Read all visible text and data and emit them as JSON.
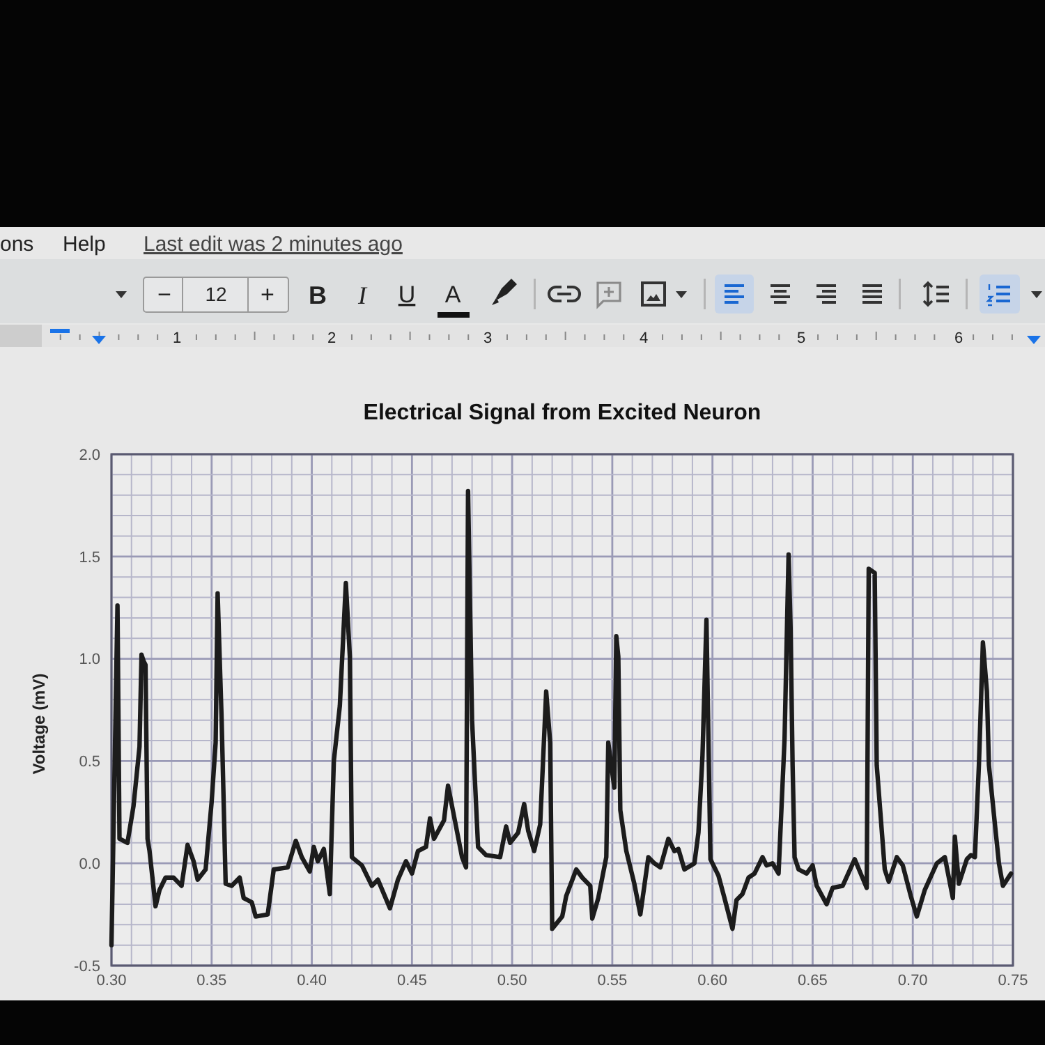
{
  "chart_data": {
    "type": "line",
    "title": "Electrical Signal from Excited Neuron",
    "ylabel": "Voltage (mV)",
    "annotations": [
      "ons",
      "Help",
      "Last edit was 2 minutes ago",
      "−",
      "12",
      "+",
      "B",
      "I",
      "U",
      "A",
      "1",
      "2",
      "3",
      "4",
      "5",
      "6"
    ],
    "x": [
      0.3,
      0.303,
      0.304,
      0.308,
      0.311,
      0.314,
      0.315,
      0.316,
      0.317,
      0.318,
      0.319,
      0.322,
      0.324,
      0.327,
      0.331,
      0.335,
      0.338,
      0.341,
      0.343,
      0.347,
      0.35,
      0.352,
      0.353,
      0.355,
      0.357,
      0.36,
      0.364,
      0.366,
      0.37,
      0.372,
      0.378,
      0.381,
      0.388,
      0.392,
      0.395,
      0.399,
      0.401,
      0.403,
      0.406,
      0.409,
      0.411,
      0.414,
      0.417,
      0.419,
      0.42,
      0.425,
      0.43,
      0.433,
      0.439,
      0.443,
      0.447,
      0.45,
      0.453,
      0.457,
      0.459,
      0.461,
      0.466,
      0.468,
      0.47,
      0.475,
      0.477,
      0.478,
      0.48,
      0.483,
      0.487,
      0.494,
      0.497,
      0.499,
      0.503,
      0.506,
      0.508,
      0.511,
      0.514,
      0.517,
      0.519,
      0.52,
      0.525,
      0.527,
      0.532,
      0.535,
      0.539,
      0.54,
      0.543,
      0.547,
      0.548,
      0.551,
      0.552,
      0.553,
      0.554,
      0.557,
      0.561,
      0.564,
      0.568,
      0.571,
      0.574,
      0.578,
      0.581,
      0.583,
      0.586,
      0.591,
      0.593,
      0.595,
      0.597,
      0.599,
      0.603,
      0.606,
      0.61,
      0.612,
      0.615,
      0.618,
      0.621,
      0.625,
      0.627,
      0.63,
      0.633,
      0.636,
      0.638,
      0.639,
      0.64,
      0.641,
      0.643,
      0.647,
      0.65,
      0.652,
      0.657,
      0.66,
      0.665,
      0.671,
      0.674,
      0.677,
      0.678,
      0.681,
      0.682,
      0.686,
      0.688,
      0.692,
      0.695,
      0.699,
      0.702,
      0.706,
      0.712,
      0.716,
      0.72,
      0.721,
      0.723,
      0.727,
      0.729,
      0.731,
      0.733,
      0.735,
      0.737,
      0.738,
      0.741,
      0.743,
      0.745,
      0.749
    ],
    "values": [
      -0.4,
      1.26,
      0.12,
      0.1,
      0.28,
      0.57,
      1.02,
      0.99,
      0.97,
      0.12,
      0.06,
      -0.21,
      -0.13,
      -0.07,
      -0.07,
      -0.11,
      0.09,
      0.01,
      -0.08,
      -0.03,
      0.3,
      0.59,
      1.32,
      0.7,
      -0.1,
      -0.11,
      -0.07,
      -0.17,
      -0.19,
      -0.26,
      -0.25,
      -0.03,
      -0.02,
      0.11,
      0.03,
      -0.04,
      0.08,
      0.01,
      0.07,
      -0.15,
      0.5,
      0.77,
      1.37,
      1.01,
      0.03,
      -0.01,
      -0.11,
      -0.08,
      -0.22,
      -0.08,
      0.01,
      -0.05,
      0.06,
      0.08,
      0.22,
      0.12,
      0.21,
      0.38,
      0.28,
      0.03,
      -0.02,
      1.82,
      0.7,
      0.08,
      0.04,
      0.03,
      0.18,
      0.1,
      0.15,
      0.29,
      0.16,
      0.06,
      0.19,
      0.84,
      0.59,
      -0.32,
      -0.26,
      -0.16,
      -0.03,
      -0.07,
      -0.11,
      -0.27,
      -0.17,
      0.03,
      0.59,
      0.37,
      1.11,
      1.01,
      0.26,
      0.06,
      -0.1,
      -0.25,
      0.03,
      0.0,
      -0.02,
      0.12,
      0.06,
      0.07,
      -0.03,
      0.0,
      0.15,
      0.52,
      1.19,
      0.02,
      -0.06,
      -0.17,
      -0.32,
      -0.18,
      -0.15,
      -0.07,
      -0.05,
      0.03,
      -0.01,
      0.0,
      -0.05,
      0.61,
      1.51,
      1.15,
      0.48,
      0.03,
      -0.03,
      -0.05,
      -0.01,
      -0.11,
      -0.2,
      -0.12,
      -0.11,
      0.02,
      -0.05,
      -0.12,
      1.44,
      1.42,
      0.48,
      -0.03,
      -0.09,
      0.03,
      -0.01,
      -0.16,
      -0.26,
      -0.13,
      0.0,
      0.03,
      -0.17,
      0.13,
      -0.1,
      0.02,
      0.04,
      0.03,
      0.48,
      1.08,
      0.84,
      0.48,
      0.19,
      0.0,
      -0.11,
      -0.05
    ],
    "color": "#1c1c1c",
    "line_style": "solid",
    "grid": true,
    "xlim": [
      0.3,
      0.75
    ],
    "ylim": [
      -0.5,
      2.0
    ],
    "xticks": [
      {
        "value": 0.3,
        "label": "0.30"
      },
      {
        "value": 0.31,
        "label": null
      },
      {
        "value": 0.32,
        "label": null
      },
      {
        "value": 0.33,
        "label": null
      },
      {
        "value": 0.34,
        "label": null
      },
      {
        "value": 0.35,
        "label": "0.35"
      },
      {
        "value": 0.36,
        "label": null
      },
      {
        "value": 0.37,
        "label": null
      },
      {
        "value": 0.38,
        "label": null
      },
      {
        "value": 0.39,
        "label": null
      },
      {
        "value": 0.4,
        "label": "0.40"
      },
      {
        "value": 0.41,
        "label": null
      },
      {
        "value": 0.42,
        "label": null
      },
      {
        "value": 0.43,
        "label": null
      },
      {
        "value": 0.44,
        "label": null
      },
      {
        "value": 0.45,
        "label": "0.45"
      },
      {
        "value": 0.46,
        "label": null
      },
      {
        "value": 0.47,
        "label": null
      },
      {
        "value": 0.48,
        "label": null
      },
      {
        "value": 0.49,
        "label": null
      },
      {
        "value": 0.5,
        "label": "0.50"
      },
      {
        "value": 0.51,
        "label": null
      },
      {
        "value": 0.52,
        "label": null
      },
      {
        "value": 0.53,
        "label": null
      },
      {
        "value": 0.54,
        "label": null
      },
      {
        "value": 0.55,
        "label": "0.55"
      },
      {
        "value": 0.56,
        "label": null
      },
      {
        "value": 0.57,
        "label": null
      },
      {
        "value": 0.58,
        "label": null
      },
      {
        "value": 0.59,
        "label": null
      },
      {
        "value": 0.6,
        "label": "0.60"
      },
      {
        "value": 0.61,
        "label": null
      },
      {
        "value": 0.62,
        "label": null
      },
      {
        "value": 0.63,
        "label": null
      },
      {
        "value": 0.64,
        "label": null
      },
      {
        "value": 0.65,
        "label": "0.65"
      },
      {
        "value": 0.66,
        "label": null
      },
      {
        "value": 0.67,
        "label": null
      },
      {
        "value": 0.68,
        "label": null
      },
      {
        "value": 0.69,
        "label": null
      },
      {
        "value": 0.7,
        "label": "0.70"
      },
      {
        "value": 0.71,
        "label": null
      },
      {
        "value": 0.72,
        "label": null
      },
      {
        "value": 0.73,
        "label": null
      },
      {
        "value": 0.74,
        "label": null
      },
      {
        "value": 0.75,
        "label": "0.75"
      }
    ],
    "yticks": [
      -0.5,
      {
        "value": -0.4,
        "label": null
      },
      {
        "value": -0.3,
        "label": null
      },
      {
        "value": -0.2,
        "label": null
      },
      {
        "value": -0.1,
        "label": null
      },
      {
        "value": 0,
        "label": "0.0"
      },
      {
        "value": 0.1,
        "label": null
      },
      {
        "value": 0.2,
        "label": null
      },
      {
        "value": 0.3,
        "label": null
      },
      {
        "value": 0.4,
        "label": null
      },
      0.5,
      {
        "value": 0.6,
        "label": null
      },
      {
        "value": 0.7,
        "label": null
      },
      {
        "value": 0.8,
        "label": null
      },
      {
        "value": 0.9,
        "label": null
      },
      {
        "value": 1,
        "label": "1.0"
      },
      {
        "value": 1.1,
        "label": null
      },
      {
        "value": 1.2,
        "label": null
      },
      {
        "value": 1.3,
        "label": null
      },
      {
        "value": 1.4,
        "label": null
      },
      1.5,
      {
        "value": 1.6,
        "label": null
      },
      {
        "value": 1.7,
        "label": null
      },
      {
        "value": 1.8,
        "label": null
      },
      {
        "value": 1.9,
        "label": null
      },
      {
        "value": 2,
        "label": "2.0"
      }
    ]
  }
}
